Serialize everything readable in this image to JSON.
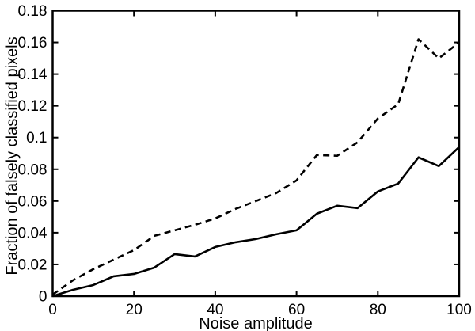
{
  "chart_data": {
    "type": "line",
    "title": "",
    "xlabel": "Noise amplitude",
    "ylabel": "Fraction of falsely classified pixels",
    "xlim": [
      0,
      100
    ],
    "ylim": [
      0,
      0.18
    ],
    "grid": false,
    "legend": "none",
    "background_color": "#ffffff",
    "axis_color": "#000000",
    "x_ticks": [
      0,
      20,
      40,
      60,
      80,
      100
    ],
    "x_tick_labels": [
      "0",
      "20",
      "40",
      "60",
      "80",
      "100"
    ],
    "y_ticks": [
      0,
      0.02,
      0.04,
      0.06,
      0.08,
      0.1,
      0.12,
      0.14,
      0.16,
      0.18
    ],
    "y_tick_labels": [
      "0",
      "0.02",
      "0.04",
      "0.06",
      "0.08",
      "0.1",
      "0.12",
      "0.14",
      "0.16",
      "0.18"
    ],
    "x": [
      0,
      5,
      10,
      15,
      20,
      25,
      30,
      35,
      40,
      45,
      50,
      55,
      60,
      65,
      70,
      75,
      80,
      85,
      90,
      95,
      100
    ],
    "series": [
      {
        "name": "solid-line",
        "style": "solid",
        "color": "#000000",
        "values": [
          0,
          0.004,
          0.007,
          0.0125,
          0.014,
          0.018,
          0.0265,
          0.025,
          0.031,
          0.034,
          0.036,
          0.039,
          0.0415,
          0.052,
          0.057,
          0.0555,
          0.066,
          0.071,
          0.0875,
          0.082,
          0.094
        ]
      },
      {
        "name": "dashed-line",
        "style": "dashed",
        "color": "#000000",
        "values": [
          0.001,
          0.01,
          0.017,
          0.023,
          0.029,
          0.038,
          0.0415,
          0.045,
          0.049,
          0.055,
          0.06,
          0.065,
          0.073,
          0.089,
          0.0885,
          0.097,
          0.112,
          0.121,
          0.162,
          0.15,
          0.16
        ]
      }
    ]
  }
}
